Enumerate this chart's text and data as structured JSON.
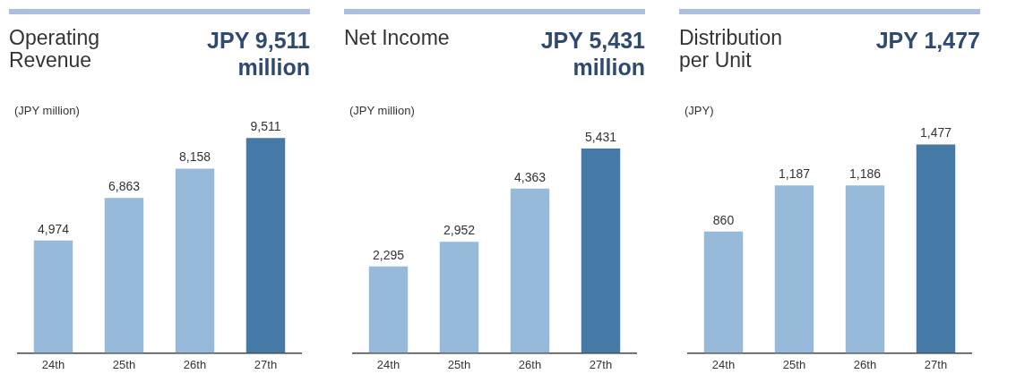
{
  "chart_data": [
    {
      "type": "bar",
      "title": "Operating Revenue",
      "subtitle": "JPY 9,511 million",
      "ylabel": "(JPY million)",
      "categories": [
        "24th",
        "25th",
        "26th",
        "27th"
      ],
      "values": [
        4974,
        6863,
        8158,
        9511
      ],
      "value_labels": [
        "4,974",
        "6,863",
        "8,158",
        "9,511"
      ],
      "colors": [
        "#97b9da",
        "#97b9da",
        "#97b9da",
        "#4579a6"
      ],
      "grid": false,
      "legend": false
    },
    {
      "type": "bar",
      "title": "Net Income",
      "subtitle": "JPY 5,431 million",
      "ylabel": "(JPY million)",
      "categories": [
        "24th",
        "25th",
        "26th",
        "27th"
      ],
      "values": [
        2295,
        2952,
        4363,
        5431
      ],
      "value_labels": [
        "2,295",
        "2,952",
        "4,363",
        "5,431"
      ],
      "colors": [
        "#97b9da",
        "#97b9da",
        "#97b9da",
        "#4579a6"
      ],
      "grid": false,
      "legend": false
    },
    {
      "type": "bar",
      "title": "Distribution per Unit",
      "subtitle": "JPY 1,477",
      "ylabel": "(JPY)",
      "categories": [
        "24th",
        "25th",
        "26th",
        "27th"
      ],
      "values": [
        860,
        1187,
        1186,
        1477
      ],
      "value_labels": [
        "860",
        "1,187",
        "1,186",
        "1,477"
      ],
      "colors": [
        "#97b9da",
        "#97b9da",
        "#97b9da",
        "#4579a6"
      ],
      "grid": false,
      "legend": false
    }
  ]
}
